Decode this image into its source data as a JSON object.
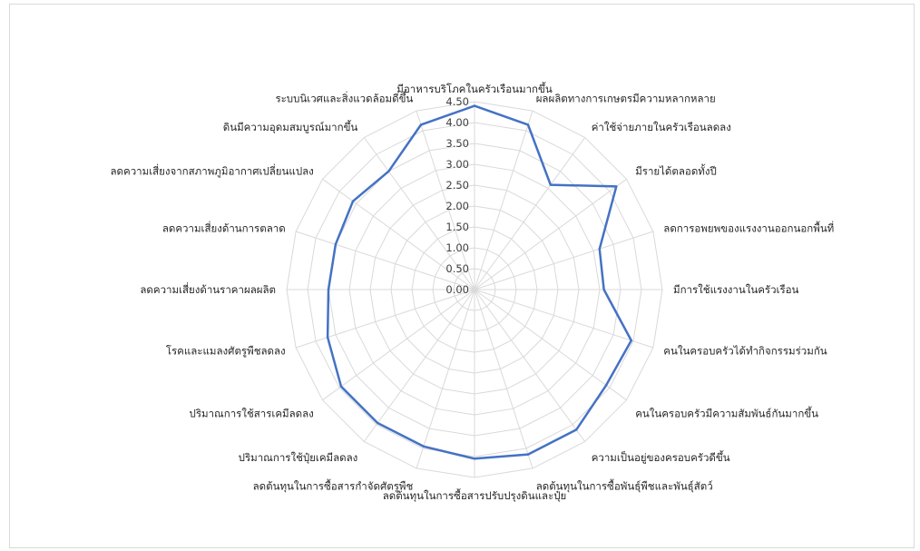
{
  "chart_data": {
    "type": "radar",
    "title": "",
    "categories": [
      "มีอาหารบริโภคในครัวเรือนมากขึ้น",
      "ผลผลิตทางการเกษตรมีความหลากหลาย",
      "ค่าใช้จ่ายภายในครัวเรือนลดลง",
      "มีรายได้ตลอดทั้งปี",
      "ลดการอพยพของแรงงานออกนอกพื้นที่",
      "มีการใช้แรงงานในครัวเรือน",
      "คนในครอบครัวได้ทำกิจกรรมร่วมกัน",
      "คนในครอบครัวมีความสัมพันธ์กันมากขึ้น",
      "ความเป็นอยู่ของครอบครัวดีขึ้น",
      "ลดต้นทุนในการซื้อพันธุ์พืชและพันธุ์สัตว์",
      "ลดต้นทุนในการซื้อสารปรับปรุงดินและปุ๋ย",
      "ลดต้นทุนในการซื้อสารกำจัดศัตรูพืช",
      "ปริมาณการใช้ปุ๋ยเคมีลดลง",
      "ปริมาณการใช้สารเคมีลดลง",
      "โรคและแมลงศัตรูพืชลดลง",
      "ลดความเสี่ยงด้านราคาผลผลิต",
      "ลดความเสี่ยงด้านการตลาด",
      "ลดความเสี่ยงจากสภาพภูมิอากาศเปลี่ยนแปลง",
      "ดินมีความอุดมสมบูรณ์มากขึ้น",
      "ระบบนิเวศและสิ่งแวดล้อมดีขึ้น"
    ],
    "series": [
      {
        "name": "",
        "values": [
          4.4,
          4.15,
          3.1,
          4.2,
          3.15,
          3.1,
          3.95,
          3.9,
          4.15,
          4.15,
          4.05,
          3.95,
          3.95,
          3.95,
          3.7,
          3.5,
          3.5,
          3.6,
          3.5,
          4.15
        ]
      }
    ],
    "rlim": [
      0,
      4.5
    ],
    "ticks": [
      "0.00",
      "0.50",
      "1.00",
      "1.50",
      "2.00",
      "2.50",
      "3.00",
      "3.50",
      "4.00",
      "4.50"
    ],
    "grid": true,
    "legend": "none",
    "line_color": "#4472C4",
    "grid_color": "#d9d9d9"
  }
}
